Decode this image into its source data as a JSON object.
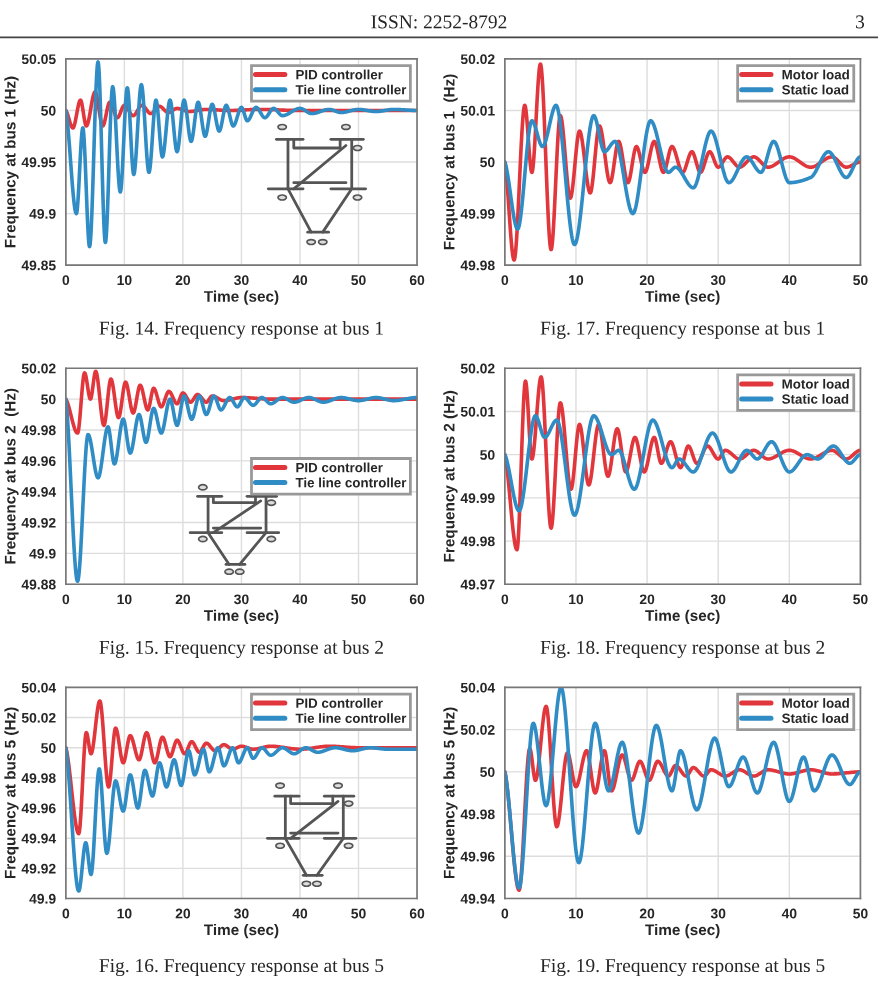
{
  "chart_data": [
    {
      "type": "line",
      "xlabel": "Time (sec)",
      "ylabel": "Frequency at bus 1 (Hz)",
      "xlim": [
        0,
        60
      ],
      "ylim": [
        49.85,
        50.05
      ],
      "xticks": [
        0,
        10,
        20,
        30,
        40,
        50,
        60
      ],
      "yticks": [
        49.85,
        49.9,
        49.95,
        50,
        50.05
      ],
      "grid": true,
      "legend": "top right",
      "annotations": [
        "Fig. 14. Frequency response at bus 1",
        "ISSN: 2252-8792",
        "3"
      ],
      "series": [
        {
          "name": "PID controller",
          "color": "#e0363c",
          "x": [
            0,
            1.2,
            2.5,
            3.5,
            5,
            6.3,
            7.5,
            8.8,
            10,
            11.5,
            13,
            14.5,
            16,
            17.5,
            19,
            21,
            24,
            28,
            33,
            40,
            50,
            60
          ],
          "values": [
            50,
            49.983,
            50.01,
            49.985,
            50.018,
            49.985,
            50.008,
            49.993,
            50.005,
            49.995,
            50.005,
            49.997,
            50.004,
            49.998,
            50.002,
            49.999,
            50.001,
            50,
            50.001,
            50,
            50,
            50
          ]
        },
        {
          "name": "Tie line controller",
          "color": "#2f8cc4",
          "x": [
            0,
            1.8,
            2.9,
            4.05,
            5.5,
            6.75,
            8,
            9.3,
            10.5,
            11.6,
            12.9,
            14.2,
            15.4,
            16.5,
            17.8,
            19,
            20.2,
            21.4,
            22.6,
            23.8,
            25,
            26.2,
            27.4,
            28.6,
            30,
            31,
            32.5,
            34,
            35.5,
            37,
            40,
            42,
            45,
            47,
            50,
            53,
            56,
            60
          ],
          "values": [
            50,
            49.9,
            49.983,
            49.868,
            50.047,
            49.872,
            50.023,
            49.921,
            50.022,
            49.938,
            50.025,
            49.94,
            50.01,
            49.955,
            50.01,
            49.96,
            50.01,
            49.97,
            50.008,
            49.975,
            50.006,
            49.98,
            50.005,
            49.985,
            50.003,
            49.99,
            50.003,
            49.993,
            50.002,
            49.995,
            50.002,
            49.997,
            50.001,
            49.998,
            50.001,
            49.999,
            50.001,
            50
          ]
        }
      ]
    },
    {
      "type": "line",
      "xlabel": "Time (sec)",
      "ylabel": "Frequency at bus 1  (Hz)",
      "xlim": [
        0,
        50
      ],
      "ylim": [
        49.98,
        50.02
      ],
      "xticks": [
        0,
        10,
        20,
        30,
        40,
        50
      ],
      "yticks": [
        49.98,
        49.99,
        50,
        50.01,
        50.02
      ],
      "grid": true,
      "legend": "top right",
      "annotations": [
        "Fig. 17. Frequency response at bus 1"
      ],
      "series": [
        {
          "name": "Motor load",
          "color": "#e0363c",
          "x": [
            0,
            1.3,
            2.8,
            3.8,
            5,
            6.5,
            7.8,
            9.2,
            10.5,
            12,
            13.3,
            14.8,
            16,
            17.3,
            18.5,
            19.7,
            21,
            22.3,
            23.5,
            25,
            26.3,
            27.5,
            28.8,
            30,
            31.3,
            33,
            35,
            37,
            40,
            43,
            46,
            48,
            50
          ],
          "values": [
            50,
            49.981,
            50.011,
            49.998,
            50.019,
            49.983,
            50.009,
            49.993,
            50.006,
            49.994,
            50.007,
            49.996,
            50.004,
            49.996,
            50.003,
            49.998,
            50.004,
            49.998,
            50.003,
            49.998,
            50.002,
            49.998,
            50.002,
            49.999,
            50.001,
            49.999,
            50.001,
            49.999,
            50.001,
            49.999,
            50.001,
            49.999,
            50
          ]
        },
        {
          "name": "Static load",
          "color": "#2f8cc4",
          "x": [
            0,
            1.8,
            3.8,
            5.3,
            7.2,
            9.8,
            12.5,
            14,
            15.5,
            18,
            20.5,
            23,
            24,
            26.5,
            29,
            31.5,
            34,
            36,
            37.8,
            40,
            43,
            45.5,
            48,
            50
          ],
          "values": [
            50,
            49.987,
            50.008,
            50.003,
            50.011,
            49.984,
            50.009,
            50.002,
            50.004,
            49.99,
            50.008,
            49.998,
            49.999,
            49.995,
            50.006,
            49.996,
            50.001,
            49.998,
            50.004,
            49.996,
            49.997,
            50.002,
            49.997,
            50.001
          ]
        }
      ]
    },
    {
      "type": "line",
      "xlabel": "Time (sec)",
      "ylabel": "Frequency at bus 2  (Hz)",
      "xlim": [
        0,
        60
      ],
      "ylim": [
        49.88,
        50.02
      ],
      "xticks": [
        0,
        10,
        20,
        30,
        40,
        50,
        60
      ],
      "yticks": [
        49.88,
        49.9,
        49.92,
        49.94,
        49.96,
        49.98,
        50,
        50.02
      ],
      "grid": true,
      "legend": "right",
      "annotations": [
        "Fig. 15. Frequency response at bus 2"
      ],
      "series": [
        {
          "name": "PID controller",
          "color": "#e0363c",
          "x": [
            0,
            2,
            3.2,
            4.2,
            5.1,
            6.5,
            7.7,
            9,
            10.2,
            11.5,
            12.7,
            14,
            15,
            16.3,
            17.6,
            19,
            20,
            21.3,
            22.5,
            24,
            25,
            27,
            30,
            35,
            40,
            50,
            60
          ],
          "values": [
            50,
            49.978,
            50.017,
            50,
            50.018,
            49.983,
            50.013,
            49.988,
            50.011,
            49.991,
            50.009,
            49.993,
            50.007,
            49.995,
            50.005,
            49.997,
            50.004,
            49.998,
            50.003,
            49.998,
            50.002,
            49.999,
            50.001,
            50,
            50,
            50,
            50
          ]
        },
        {
          "name": "Tie line controller",
          "color": "#2f8cc4",
          "x": [
            0,
            2,
            3.8,
            5.5,
            7.2,
            8.3,
            9.8,
            11,
            12.5,
            13.7,
            15,
            16.3,
            17.8,
            19,
            20.2,
            21.5,
            22.8,
            24,
            25.3,
            26.5,
            28,
            29.3,
            30.5,
            32,
            33.5,
            35,
            37,
            39,
            41.5,
            44,
            47,
            50,
            53,
            56,
            60
          ],
          "values": [
            50,
            49.882,
            49.977,
            49.949,
            49.982,
            49.958,
            49.987,
            49.965,
            49.99,
            49.972,
            49.994,
            49.978,
            50,
            49.983,
            50.002,
            49.987,
            50.002,
            49.99,
            50.002,
            49.993,
            50.001,
            49.995,
            50.001,
            49.996,
            50.001,
            49.997,
            50.001,
            49.998,
            50.001,
            49.998,
            50.001,
            49.999,
            50.001,
            49.999,
            50.001
          ]
        }
      ]
    },
    {
      "type": "line",
      "xlabel": "Time (sec)",
      "ylabel": "Frequency at bus 2 (Hz)",
      "xlim": [
        0,
        50
      ],
      "ylim": [
        49.97,
        50.02
      ],
      "xticks": [
        0,
        10,
        20,
        30,
        40,
        50
      ],
      "yticks": [
        49.97,
        49.98,
        49.99,
        50,
        50.01,
        50.02
      ],
      "grid": true,
      "legend": "top right",
      "annotations": [
        "Fig. 18. Frequency response at bus 2"
      ],
      "series": [
        {
          "name": "Motor load",
          "color": "#e0363c",
          "x": [
            0,
            1.7,
            2.9,
            3.8,
            5.1,
            6.5,
            7.8,
            9.3,
            10.5,
            11.8,
            13.2,
            14.5,
            15.8,
            17,
            18.3,
            19.6,
            21,
            22,
            23.3,
            24.7,
            25.8,
            27,
            28.5,
            30,
            31,
            33,
            35,
            37,
            40,
            43,
            46,
            48,
            50
          ],
          "values": [
            50,
            49.978,
            50.017,
            49.999,
            50.018,
            49.983,
            50.012,
            49.992,
            50.007,
            49.993,
            50.007,
            49.995,
            50.006,
            49.996,
            50.004,
            49.996,
            50.004,
            49.998,
            50.003,
            49.997,
            50.002,
            49.998,
            50.002,
            49.999,
            50.001,
            49.999,
            50.001,
            49.999,
            50.001,
            49.999,
            50.001,
            49.999,
            50.001
          ]
        },
        {
          "name": "Static load",
          "color": "#2f8cc4",
          "x": [
            0,
            2,
            4.3,
            5.6,
            7.3,
            9.8,
            12.5,
            15,
            16,
            18.2,
            20.8,
            23.5,
            24.5,
            26.5,
            29.2,
            31.8,
            34,
            35.5,
            37.5,
            40,
            42.5,
            44,
            46.2,
            48.5,
            50
          ],
          "values": [
            50,
            49.987,
            50.009,
            50.004,
            50.008,
            49.986,
            50.009,
            50,
            50.001,
            49.992,
            50.008,
            49.997,
            49.999,
            49.996,
            50.005,
            49.996,
            50.001,
            49.999,
            50.003,
            49.996,
            50,
            49.999,
            50.002,
            49.998,
            50
          ]
        }
      ]
    },
    {
      "type": "line",
      "xlabel": "Time (sec)",
      "ylabel": "Frequency at bus 5 (Hz)",
      "xlim": [
        0,
        60
      ],
      "ylim": [
        49.9,
        50.04
      ],
      "xticks": [
        0,
        10,
        20,
        30,
        40,
        50,
        60
      ],
      "yticks": [
        49.9,
        49.92,
        49.94,
        49.96,
        49.98,
        50,
        50.02,
        50.04
      ],
      "grid": true,
      "legend": "top right",
      "annotations": [
        "Fig. 16. Frequency response at bus 5"
      ],
      "series": [
        {
          "name": "PID controller",
          "color": "#e0363c",
          "x": [
            0,
            2.2,
            3.5,
            4.3,
            5.8,
            7.3,
            8.5,
            9.8,
            11,
            12.5,
            13.8,
            15.2,
            16.5,
            17.8,
            19,
            20.3,
            21.5,
            22.8,
            24,
            25.5,
            27,
            28.5,
            30,
            32,
            35,
            40,
            45,
            50,
            60
          ],
          "values": [
            50,
            49.943,
            50.01,
            49.996,
            50.031,
            49.974,
            50.013,
            49.99,
            50.008,
            49.992,
            50.01,
            49.99,
            50.007,
            49.994,
            50.005,
            49.996,
            50.004,
            49.997,
            50.003,
            49.998,
            50.002,
            49.999,
            50.001,
            49.999,
            50.001,
            49.999,
            50.001,
            50,
            50
          ]
        },
        {
          "name": "Tie line controller",
          "color": "#2f8cc4",
          "x": [
            0,
            2.2,
            3.4,
            4.3,
            5.7,
            7,
            8.5,
            9.8,
            11,
            12.3,
            13.5,
            14.8,
            16,
            17.2,
            18.5,
            19.7,
            21,
            22,
            23.5,
            24.5,
            26,
            27,
            28.5,
            29.5,
            31,
            32,
            33.5,
            35,
            37,
            39,
            41,
            43,
            46,
            49,
            52,
            55,
            60
          ],
          "values": [
            50,
            49.905,
            49.937,
            49.916,
            49.986,
            49.93,
            49.978,
            49.958,
            49.982,
            49.96,
            49.985,
            49.968,
            49.99,
            49.974,
            49.992,
            49.975,
            49.998,
            49.982,
            49.999,
            49.984,
            50,
            49.988,
            50,
            49.99,
            50,
            49.993,
            50,
            49.995,
            50,
            49.996,
            50,
            49.997,
            50,
            49.998,
            50,
            49.999,
            49.999
          ]
        }
      ]
    },
    {
      "type": "line",
      "xlabel": "Time (sec)",
      "ylabel": "Frequency at bus 5 (Hz)",
      "xlim": [
        0,
        50
      ],
      "ylim": [
        49.94,
        50.04
      ],
      "xticks": [
        0,
        10,
        20,
        30,
        40,
        50
      ],
      "yticks": [
        49.94,
        49.96,
        49.98,
        50,
        50.02,
        50.04
      ],
      "grid": true,
      "legend": "top right",
      "annotations": [
        "Fig. 19. Frequency response at bus 5"
      ],
      "series": [
        {
          "name": "Motor load",
          "color": "#e0363c",
          "x": [
            0,
            2,
            3.5,
            4.3,
            5.8,
            7.3,
            8.8,
            10,
            11.5,
            12.7,
            14,
            15,
            16.5,
            17.8,
            19,
            20.3,
            21.5,
            23,
            24,
            25.5,
            26.5,
            28,
            29,
            31,
            33,
            35,
            37,
            40,
            43,
            46,
            50
          ],
          "values": [
            50,
            49.944,
            50.011,
            49.996,
            50.031,
            49.974,
            50.009,
            49.993,
            50.01,
            49.99,
            50.01,
            49.991,
            50.008,
            49.996,
            50.005,
            49.996,
            50.005,
            49.998,
            50.003,
            49.998,
            50.002,
            49.998,
            50.001,
            49.998,
            50.001,
            49.998,
            50.001,
            49.999,
            50.001,
            49.999,
            50
          ]
        },
        {
          "name": "Static load",
          "color": "#2f8cc4",
          "x": [
            0,
            2,
            4,
            5.8,
            7.9,
            10.4,
            12.7,
            14.6,
            16.5,
            18.8,
            21.3,
            23.5,
            24.7,
            27,
            29.5,
            31.5,
            33.5,
            35.5,
            37.8,
            40,
            42,
            43.5,
            46,
            48.5,
            50
          ],
          "values": [
            50,
            49.945,
            50.023,
            49.984,
            50.04,
            49.957,
            50.023,
            49.991,
            50.014,
            49.971,
            50.022,
            49.991,
            50.01,
            49.982,
            50.016,
            49.993,
            50.007,
            49.99,
            50.014,
            49.986,
            50.007,
            49.991,
            50.008,
            49.994,
            50
          ]
        }
      ]
    }
  ]
}
